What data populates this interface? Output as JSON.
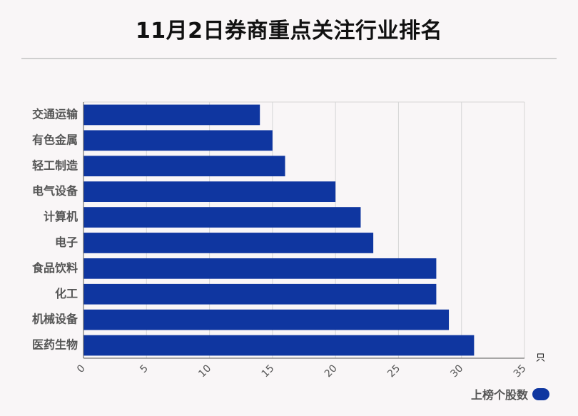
{
  "title": "11月2日券商重点关注行业排名",
  "unit_label": "只",
  "colors": {
    "bar": "#0f36a0",
    "grid": "#d6d6d6",
    "axis": "#555555",
    "label": "#555555"
  },
  "chart_data": {
    "type": "bar",
    "orientation": "horizontal",
    "categories": [
      "交通运输",
      "有色金属",
      "轻工制造",
      "电气设备",
      "计算机",
      "电子",
      "食品饮料",
      "化工",
      "机械设备",
      "医药生物"
    ],
    "series": [
      {
        "name": "上榜个股数",
        "values": [
          14,
          15,
          16,
          20,
          22,
          23,
          28,
          28,
          29,
          31
        ]
      }
    ],
    "xlim": [
      0,
      35
    ],
    "xticks": [
      0,
      5,
      10,
      15,
      20,
      25,
      30,
      35
    ],
    "xtick_labels": [
      "0",
      "5",
      "10",
      "15",
      "20",
      "25",
      "30",
      "35"
    ],
    "grid": true,
    "legend_position": "bottom-right"
  }
}
